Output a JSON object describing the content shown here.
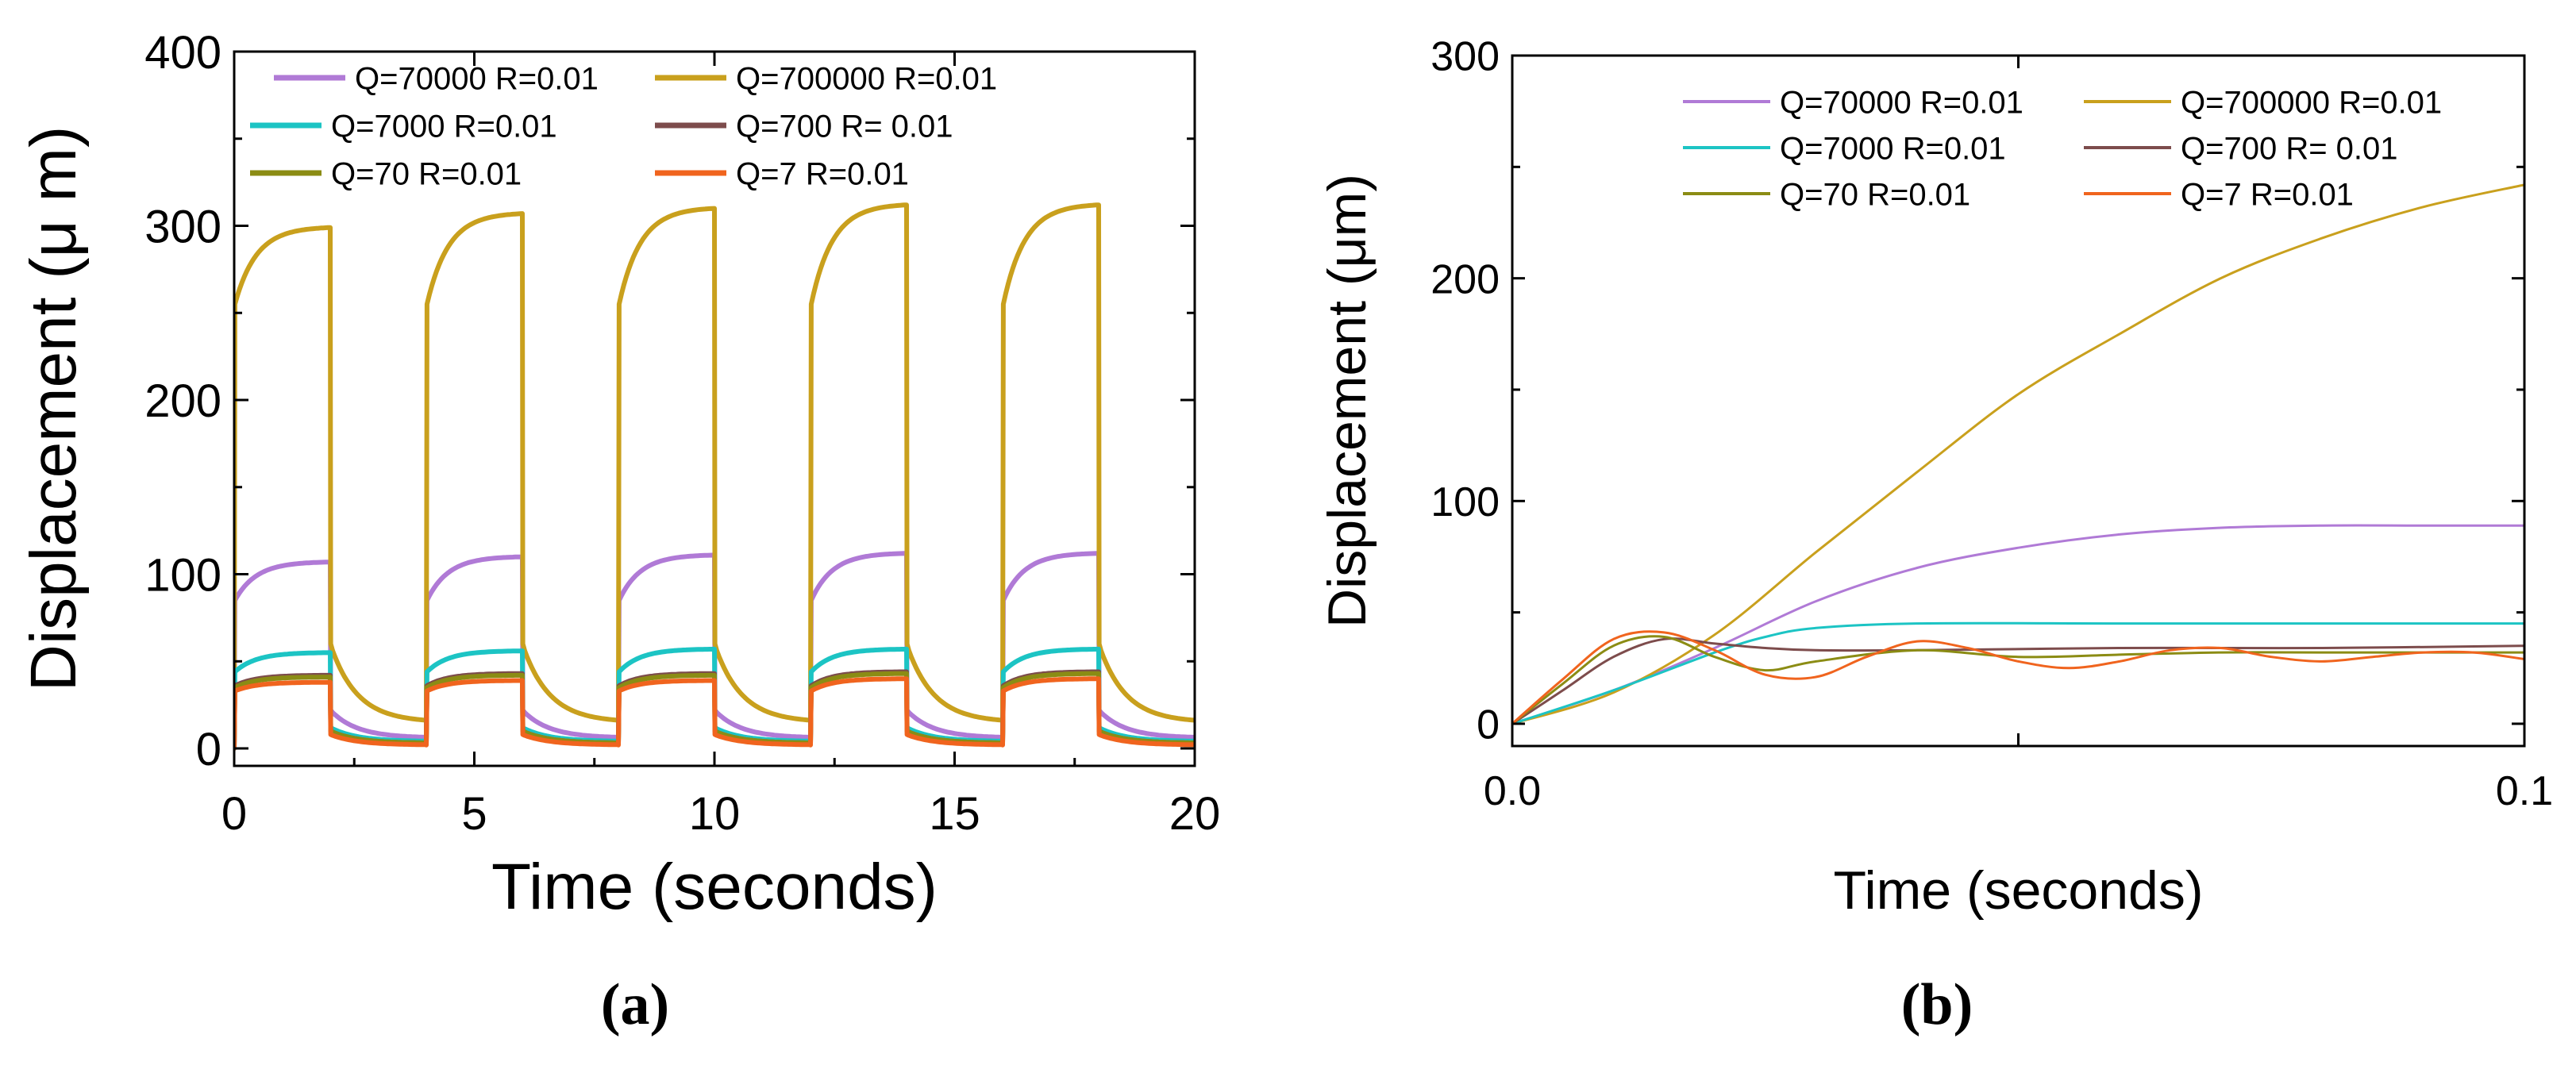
{
  "figure": {
    "captions": [
      "(a)",
      "(b)"
    ]
  },
  "chart_data": [
    {
      "type": "line",
      "panel": "a",
      "title": "",
      "xlabel": "Time (seconds)",
      "ylabel": "Displacement (μ m)",
      "xlim": [
        0,
        20
      ],
      "ylim": [
        -10,
        400
      ],
      "xticks": [
        0,
        5,
        10,
        15,
        20
      ],
      "xtick_labels": [
        "0",
        "5",
        "10",
        "15",
        "20"
      ],
      "yticks": [
        0,
        100,
        200,
        300,
        400
      ],
      "ytick_labels": [
        "0",
        "100",
        "200",
        "300",
        "400"
      ],
      "grid": false,
      "legend_position": "top-left",
      "pulse": {
        "period": 4,
        "on_duration": 2,
        "cycles": 5
      },
      "series": [
        {
          "name": "Q=70000  R=0.01",
          "color": "#b07ad6",
          "on_start": 85,
          "on_end": [
            107,
            110,
            111,
            112,
            112
          ],
          "off_start": 22,
          "off_end": 6
        },
        {
          "name": "Q=700000 R=0.01",
          "color": "#c9a01d",
          "on_start": 255,
          "on_end": [
            299,
            307,
            310,
            312,
            312
          ],
          "off_start": 60,
          "off_end": 15
        },
        {
          "name": "Q=7000 R=0.01",
          "color": "#1cc4c4",
          "on_start": 44,
          "on_end": [
            55,
            56,
            57,
            57,
            57
          ],
          "off_start": 12,
          "off_end": 4
        },
        {
          "name": "Q=700 R= 0.01",
          "color": "#7d4c4c",
          "on_start": 36,
          "on_end": [
            42,
            43,
            43,
            44,
            44
          ],
          "off_start": 10,
          "off_end": 3
        },
        {
          "name": "Q=70 R=0.01",
          "color": "#8b8c14",
          "on_start": 35,
          "on_end": [
            41,
            42,
            42,
            43,
            43
          ],
          "off_start": 10,
          "off_end": 3
        },
        {
          "name": "Q=7 R=0.01",
          "color": "#f0641e",
          "on_start": 33,
          "on_end": [
            38,
            39,
            39,
            40,
            40
          ],
          "off_start": 8,
          "off_end": 2
        }
      ]
    },
    {
      "type": "line",
      "panel": "b",
      "title": "",
      "xlabel": "Time (seconds)",
      "ylabel": "Displacement (μm)",
      "xlim": [
        0,
        0.1
      ],
      "ylim": [
        -10,
        300
      ],
      "xticks": [
        0,
        0.1
      ],
      "xtick_labels": [
        "0.0",
        "0.1"
      ],
      "yticks": [
        0,
        100,
        200,
        300
      ],
      "ytick_labels": [
        "0",
        "100",
        "200",
        "300"
      ],
      "grid": false,
      "legend_position": "top-right",
      "series": [
        {
          "name": "Q=70000  R=0.01",
          "color": "#b07ad6",
          "x": [
            0,
            0.01,
            0.02,
            0.03,
            0.04,
            0.05,
            0.06,
            0.07,
            0.08,
            0.09,
            0.1
          ],
          "y": [
            0,
            15,
            34,
            55,
            70,
            79,
            85,
            88,
            89,
            89,
            89
          ]
        },
        {
          "name": "Q=700000 R=0.01",
          "color": "#c9a01d",
          "x": [
            0,
            0.01,
            0.02,
            0.03,
            0.04,
            0.05,
            0.06,
            0.07,
            0.08,
            0.09,
            0.1
          ],
          "y": [
            0,
            14,
            40,
            77,
            113,
            148,
            175,
            200,
            218,
            232,
            242
          ]
        },
        {
          "name": "Q=7000 R=0.01",
          "color": "#1cc4c4",
          "x": [
            0,
            0.01,
            0.02,
            0.025,
            0.03,
            0.04,
            0.06,
            0.08,
            0.1
          ],
          "y": [
            0,
            15,
            32,
            39,
            43,
            45,
            45,
            45,
            45
          ]
        },
        {
          "name": "Q=700 R= 0.01",
          "color": "#7d4c4c",
          "x": [
            0,
            0.005,
            0.01,
            0.015,
            0.02,
            0.025,
            0.03,
            0.04,
            0.06,
            0.08,
            0.1
          ],
          "y": [
            0,
            15,
            30,
            38,
            36,
            34,
            33,
            33,
            34,
            34,
            35
          ]
        },
        {
          "name": "Q=70 R=0.01",
          "color": "#8b8c14",
          "x": [
            0,
            0.005,
            0.01,
            0.015,
            0.02,
            0.025,
            0.03,
            0.04,
            0.05,
            0.06,
            0.07,
            0.08,
            0.09,
            0.1
          ],
          "y": [
            0,
            18,
            35,
            39,
            30,
            24,
            28,
            33,
            30,
            31,
            32,
            32,
            32,
            32
          ]
        },
        {
          "name": "Q=7 R=0.01",
          "color": "#f0641e",
          "x": [
            0,
            0.005,
            0.01,
            0.015,
            0.02,
            0.025,
            0.03,
            0.035,
            0.04,
            0.045,
            0.05,
            0.055,
            0.06,
            0.065,
            0.07,
            0.075,
            0.08,
            0.085,
            0.09,
            0.095,
            0.1
          ],
          "y": [
            0,
            20,
            38,
            41,
            33,
            22,
            21,
            30,
            37,
            34,
            28,
            25,
            28,
            33,
            34,
            30,
            28,
            30,
            32,
            32,
            29
          ]
        }
      ]
    }
  ]
}
